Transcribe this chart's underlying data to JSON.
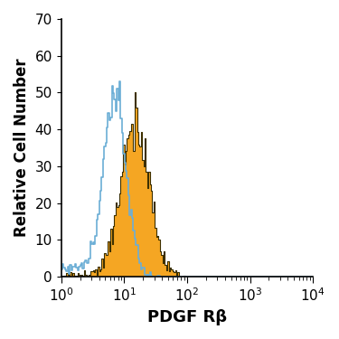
{
  "title": "",
  "xlabel": "PDGF Rβ",
  "ylabel": "Relative Cell Number",
  "xlim_log": [
    1,
    10000
  ],
  "ylim": [
    0,
    70
  ],
  "yticks": [
    0,
    10,
    20,
    30,
    40,
    50,
    60,
    70
  ],
  "blue_color": "#6baed6",
  "orange_color": "#f5a623",
  "orange_edge_color": "#3d3000",
  "background_color": "#ffffff",
  "blue_peak_log": 0.85,
  "blue_peak_val": 53,
  "orange_peak_log": 1.18,
  "orange_peak_val": 50,
  "xlabel_fontsize": 13,
  "ylabel_fontsize": 12,
  "tick_fontsize": 11
}
